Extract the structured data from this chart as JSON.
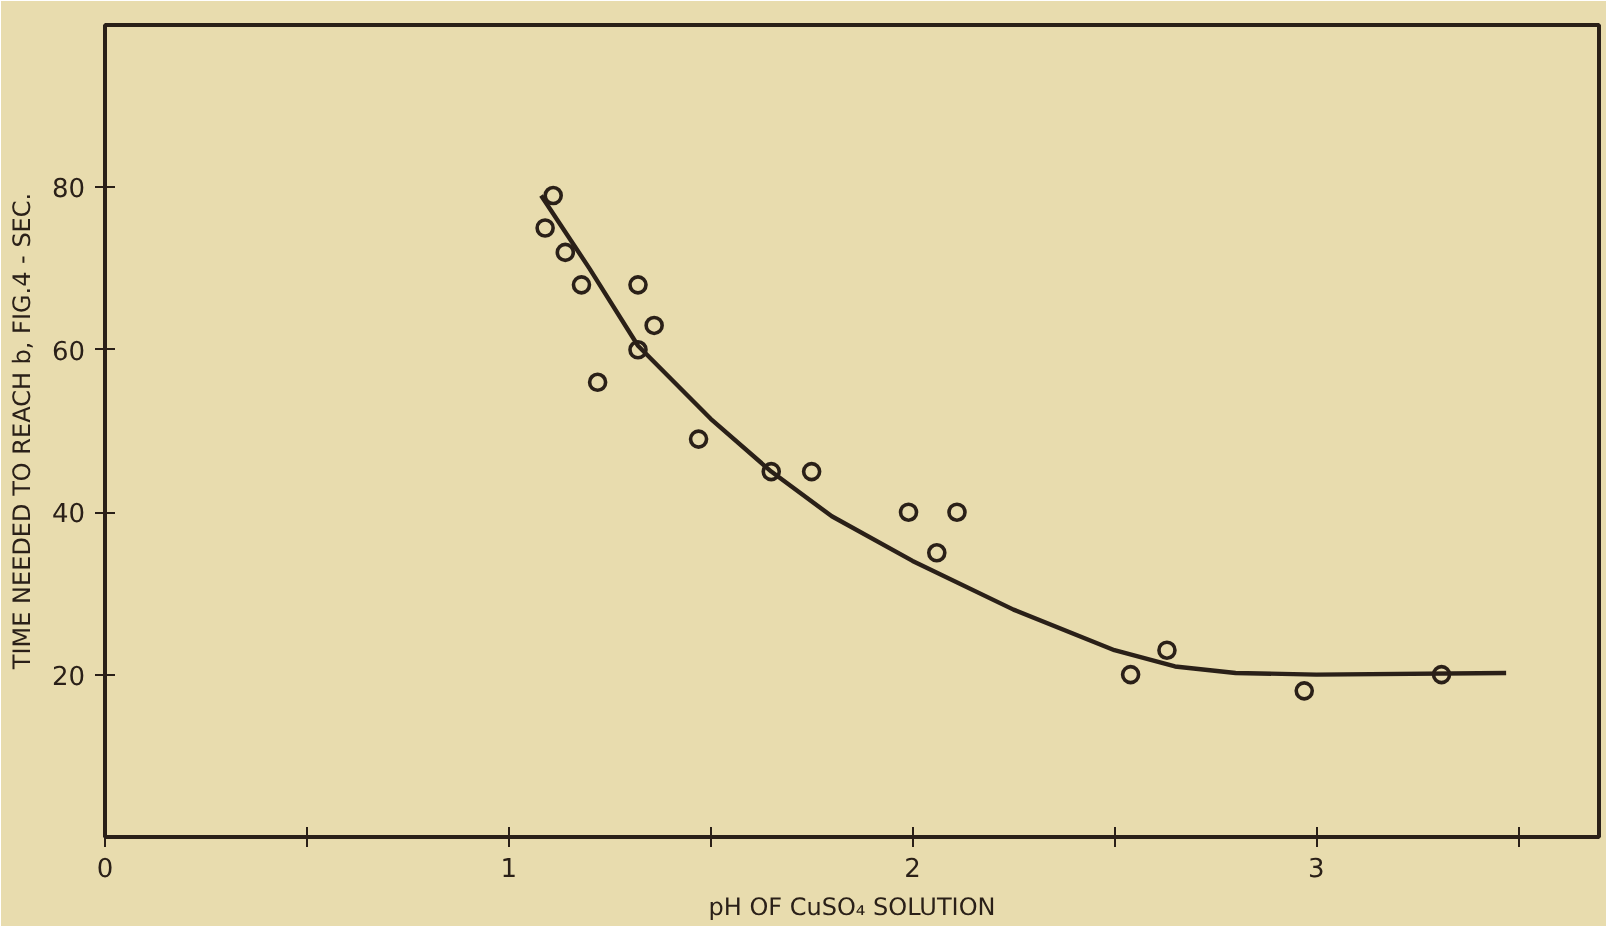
{
  "chart_data": {
    "type": "scatter",
    "xlabel": "pH OF CuSO₄ SOLUTION",
    "ylabel": "TIME NEEDED TO REACH b, FIG.4 - SEC.",
    "xlim": [
      0,
      3.7
    ],
    "ylim": [
      0,
      100
    ],
    "xticks": [
      0,
      {
        "value": 0.5,
        "label": null
      },
      1,
      {
        "value": 1.5,
        "label": null
      },
      2,
      {
        "value": 2.5,
        "label": null
      },
      3,
      {
        "value": 3.5,
        "label": null
      }
    ],
    "yticks": [
      20,
      40,
      60,
      80
    ],
    "grid": false,
    "marker": "circle",
    "series": [
      {
        "color": "#2a2018",
        "x": [
          1.09,
          1.11,
          1.14,
          1.18,
          1.22,
          1.32,
          1.32,
          1.36,
          1.47,
          1.65,
          1.75,
          1.99,
          2.06,
          2.11,
          2.54,
          2.63,
          2.97,
          3.31
        ],
        "values": [
          75,
          79,
          72,
          68,
          56,
          68,
          60,
          63,
          49,
          45,
          45,
          40,
          35,
          40,
          20,
          23,
          18,
          20
        ]
      },
      {
        "type": "line",
        "color": "#2a2018",
        "marker": "none",
        "x": [
          1.08,
          1.2,
          1.32,
          1.5,
          1.65,
          1.8,
          2.0,
          2.25,
          2.5,
          2.65,
          2.8,
          3.0,
          3.47
        ],
        "values": [
          79,
          70,
          60.5,
          51.5,
          45,
          39.5,
          34,
          28,
          23,
          21,
          20.2,
          20,
          20.2
        ]
      }
    ]
  }
}
